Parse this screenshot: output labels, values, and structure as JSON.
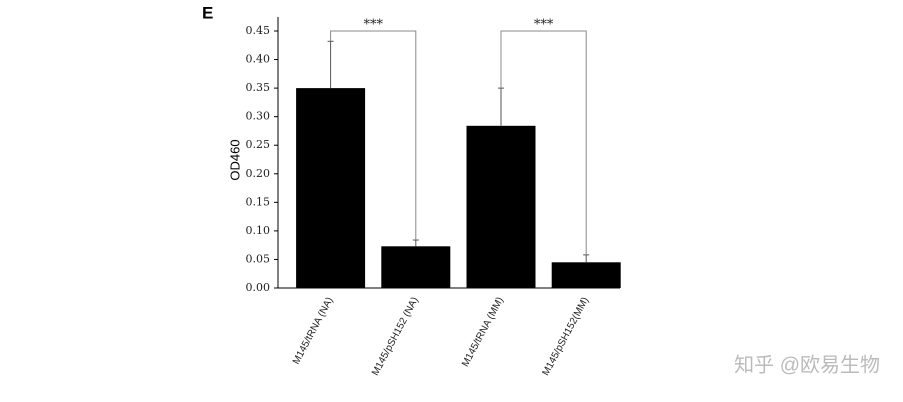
{
  "panel_label": "E",
  "watermark": "知乎 @欧易生物",
  "chart_data": {
    "type": "bar",
    "ylabel": "OD460",
    "categories": [
      "M145/tRNA (NA)",
      "M145/pSH152 (NA)",
      "M145/tRNA (MM)",
      "M145/pSH152(MM)"
    ],
    "values": [
      0.35,
      0.073,
      0.284,
      0.045
    ],
    "errors": [
      0.082,
      0.011,
      0.066,
      0.013
    ],
    "color": "#000000",
    "annotations": [
      "***",
      "***"
    ],
    "ylim": [
      0,
      0.45
    ],
    "yticks": [
      {
        "value": 0,
        "label": "0.00"
      },
      {
        "value": 0.05,
        "label": "0.05"
      },
      {
        "value": 0.1,
        "label": "0.10"
      },
      {
        "value": 0.15,
        "label": "0.15"
      },
      {
        "value": 0.2,
        "label": "0.20"
      },
      {
        "value": 0.25,
        "label": "0.25"
      },
      {
        "value": 0.3,
        "label": "0.30"
      },
      {
        "value": 0.35,
        "label": "0.35"
      },
      {
        "value": 0.4,
        "label": "0.40"
      },
      {
        "value": 0.45,
        "label": "0.45"
      }
    ],
    "grid": false
  }
}
